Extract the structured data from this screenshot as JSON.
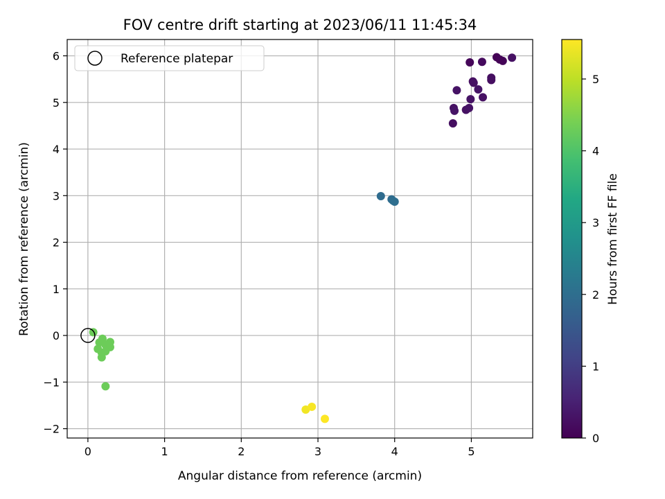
{
  "chart_data": {
    "type": "scatter",
    "title": "FOV centre drift starting at 2023/06/11 11:45:34",
    "xlabel": "Angular distance from reference (arcmin)",
    "ylabel": "Rotation from reference (arcmin)",
    "xlim": [
      -0.27,
      5.8
    ],
    "ylim": [
      -2.2,
      6.35
    ],
    "xticks": [
      0,
      1,
      2,
      3,
      4,
      5
    ],
    "xtick_labels": [
      "0",
      "1",
      "2",
      "3",
      "4",
      "5"
    ],
    "yticks": [
      -2,
      -1,
      0,
      1,
      2,
      3,
      4,
      5,
      6
    ],
    "ytick_labels": [
      "−2",
      "−1",
      "0",
      "1",
      "2",
      "3",
      "4",
      "5",
      "6"
    ],
    "grid": true,
    "legend": {
      "position": "top-left",
      "entries": [
        "Reference platepar"
      ]
    },
    "reference_point": {
      "x": 0,
      "y": 0
    },
    "colorbar": {
      "label": "Hours from first FF file",
      "colormap": "viridis",
      "range": [
        0,
        5.55
      ],
      "ticks": [
        0,
        1,
        2,
        3,
        4,
        5
      ],
      "tick_labels": [
        "0",
        "1",
        "2",
        "3",
        "4",
        "5"
      ]
    },
    "points": [
      {
        "x": 5.33,
        "y": 5.97,
        "c": 0.02
      },
      {
        "x": 5.37,
        "y": 5.92,
        "c": 0.05
      },
      {
        "x": 5.41,
        "y": 5.89,
        "c": 0.05
      },
      {
        "x": 5.53,
        "y": 5.96,
        "c": 0.25
      },
      {
        "x": 4.98,
        "y": 5.86,
        "c": 0.08
      },
      {
        "x": 5.14,
        "y": 5.87,
        "c": 0.15
      },
      {
        "x": 5.02,
        "y": 5.45,
        "c": 0.22
      },
      {
        "x": 5.03,
        "y": 5.42,
        "c": 0.25
      },
      {
        "x": 5.26,
        "y": 5.53,
        "c": 0.2
      },
      {
        "x": 5.26,
        "y": 5.48,
        "c": 0.22
      },
      {
        "x": 4.81,
        "y": 5.26,
        "c": 0.28
      },
      {
        "x": 5.09,
        "y": 5.28,
        "c": 0.3
      },
      {
        "x": 5.15,
        "y": 5.11,
        "c": 0.25
      },
      {
        "x": 4.99,
        "y": 5.07,
        "c": 0.28
      },
      {
        "x": 4.77,
        "y": 4.88,
        "c": 0.25
      },
      {
        "x": 4.78,
        "y": 4.82,
        "c": 0.3
      },
      {
        "x": 4.93,
        "y": 4.84,
        "c": 0.25
      },
      {
        "x": 4.97,
        "y": 4.88,
        "c": 0.28
      },
      {
        "x": 4.76,
        "y": 4.55,
        "c": 0.2
      },
      {
        "x": 3.82,
        "y": 2.99,
        "c": 1.95
      },
      {
        "x": 3.96,
        "y": 2.92,
        "c": 1.95
      },
      {
        "x": 3.98,
        "y": 2.89,
        "c": 2.0
      },
      {
        "x": 4.0,
        "y": 2.87,
        "c": 2.0
      },
      {
        "x": 0.07,
        "y": 0.07,
        "c": 4.3
      },
      {
        "x": 0.19,
        "y": -0.07,
        "c": 4.3
      },
      {
        "x": 0.29,
        "y": -0.14,
        "c": 4.3
      },
      {
        "x": 0.15,
        "y": -0.15,
        "c": 4.3
      },
      {
        "x": 0.23,
        "y": -0.2,
        "c": 4.3
      },
      {
        "x": 0.29,
        "y": -0.25,
        "c": 4.3
      },
      {
        "x": 0.13,
        "y": -0.29,
        "c": 4.3
      },
      {
        "x": 0.18,
        "y": -0.37,
        "c": 4.3
      },
      {
        "x": 0.23,
        "y": -0.34,
        "c": 4.3
      },
      {
        "x": 0.18,
        "y": -0.47,
        "c": 4.3
      },
      {
        "x": 0.23,
        "y": -1.09,
        "c": 4.3
      },
      {
        "x": 2.84,
        "y": -1.59,
        "c": 5.45
      },
      {
        "x": 2.92,
        "y": -1.53,
        "c": 5.5
      },
      {
        "x": 3.09,
        "y": -1.79,
        "c": 5.55
      }
    ]
  }
}
